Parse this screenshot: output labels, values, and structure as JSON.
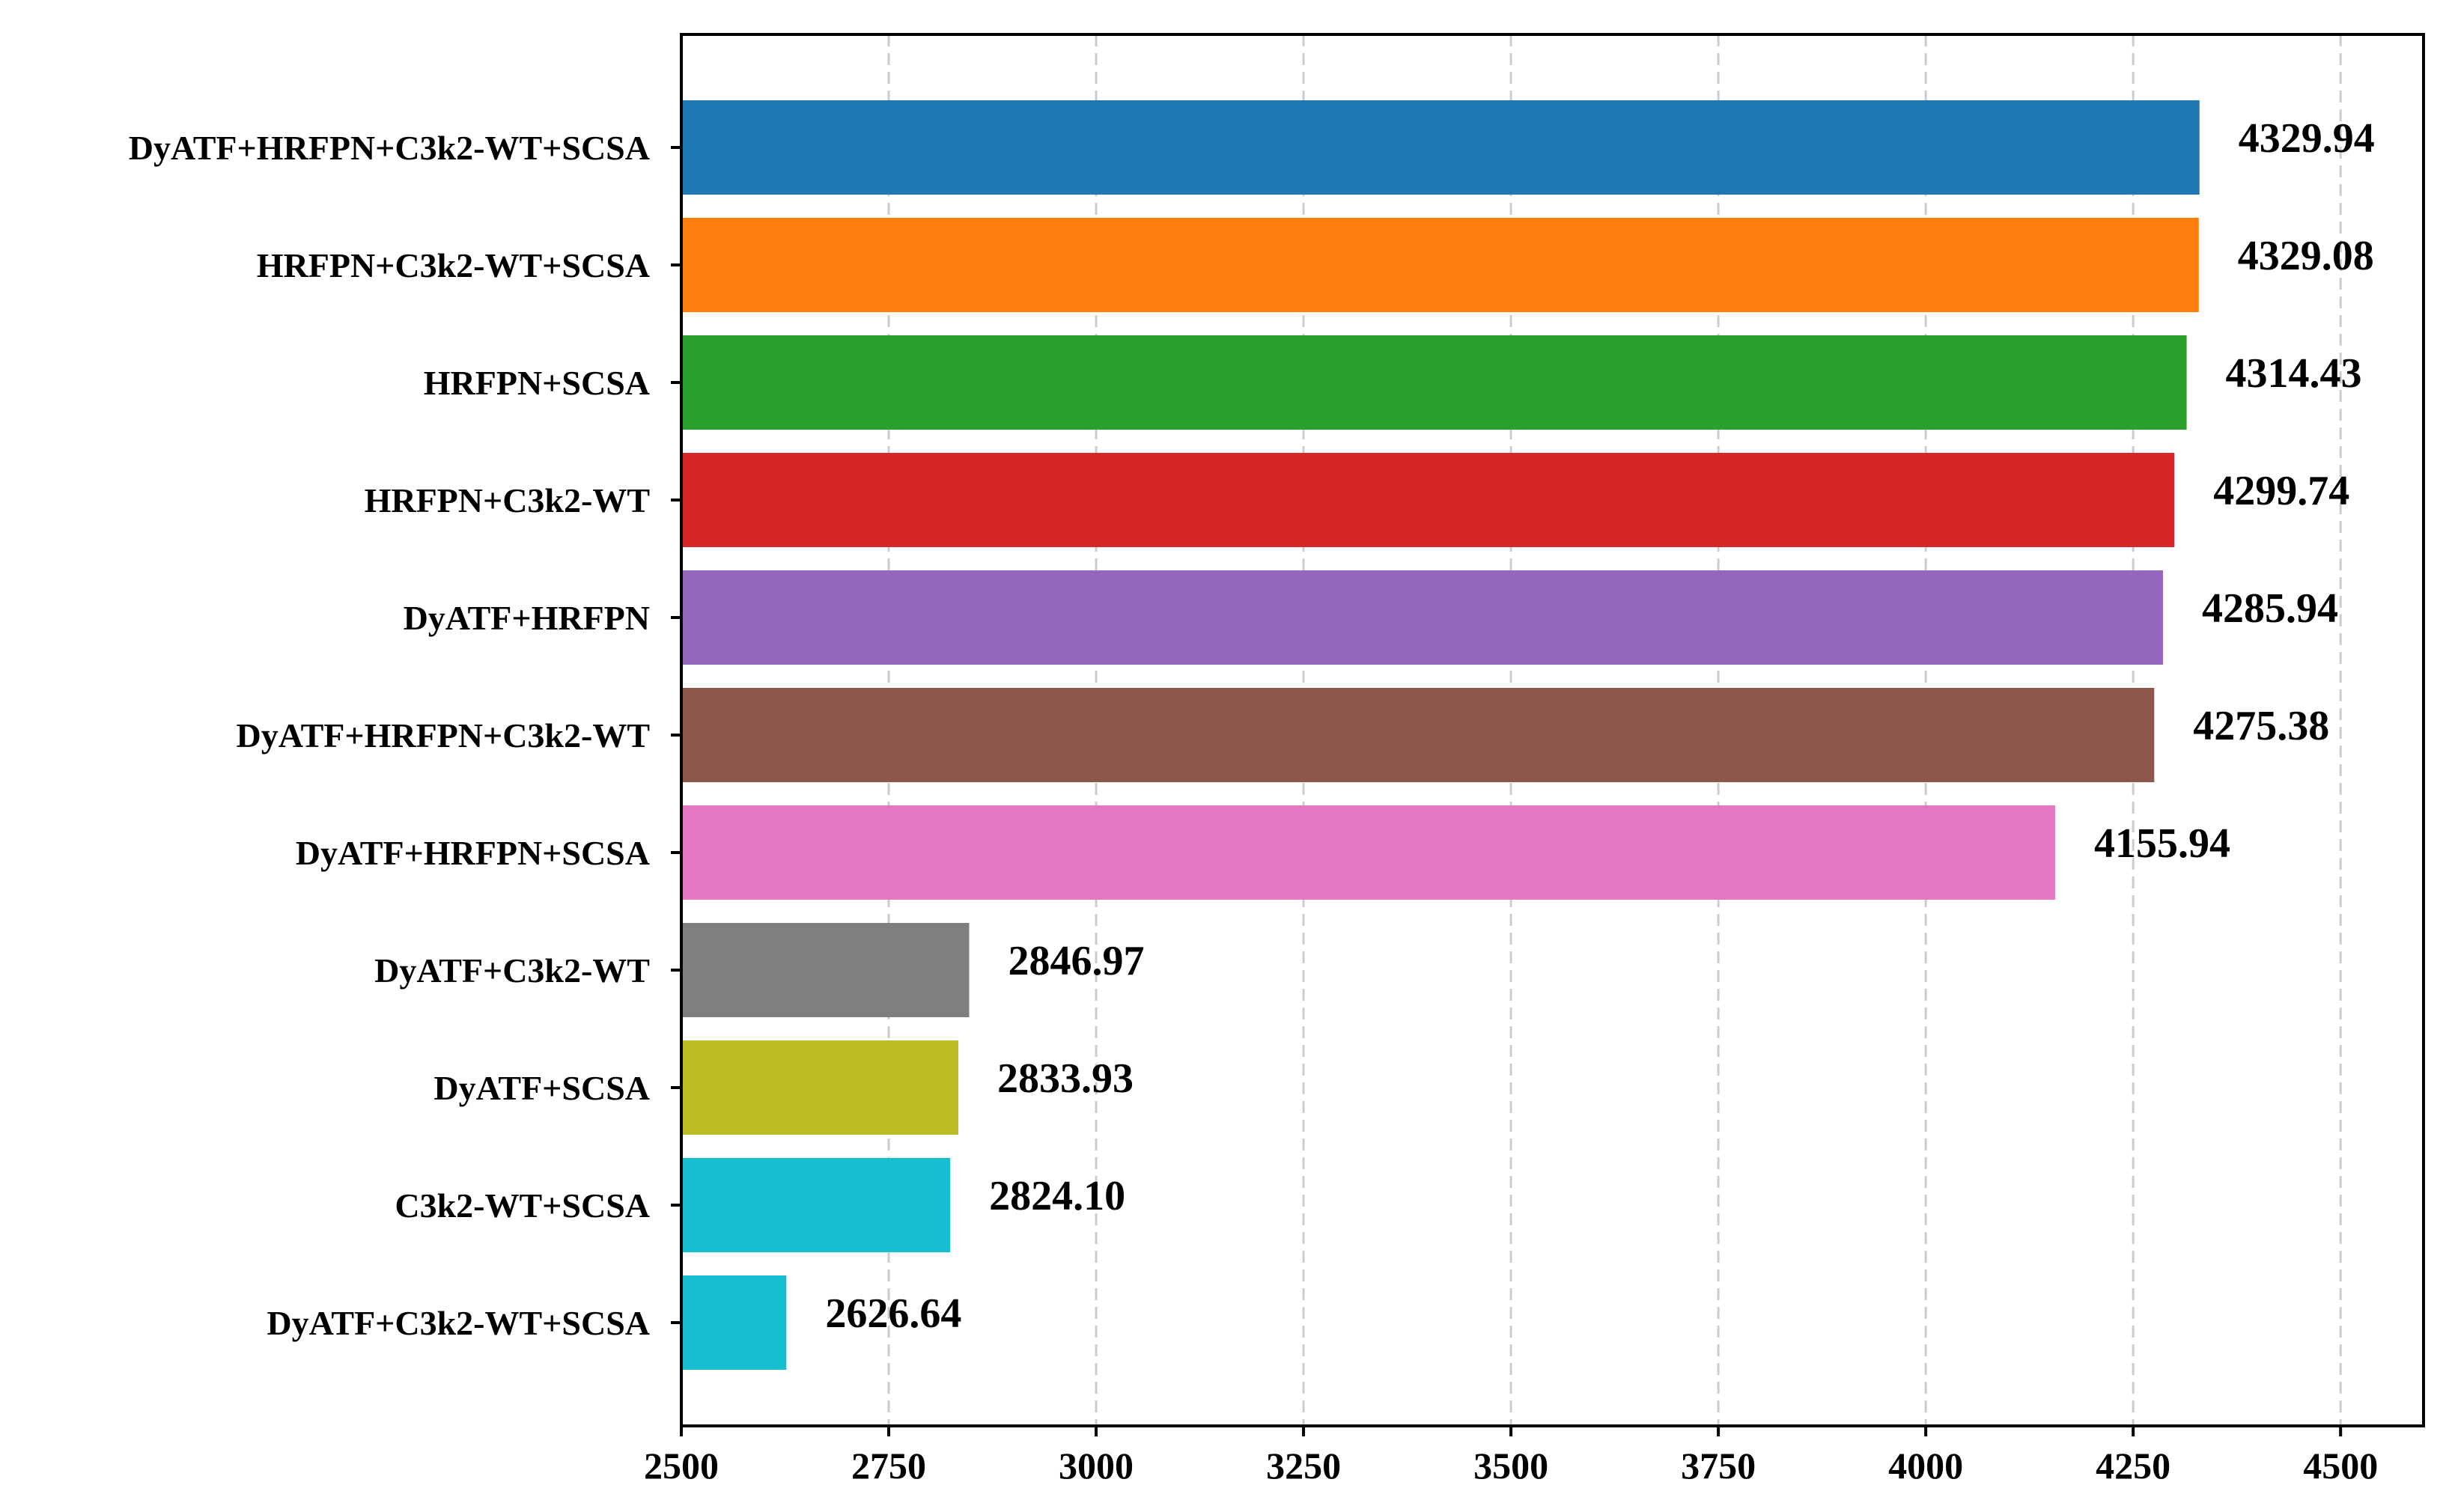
{
  "chart_data": {
    "type": "bar",
    "orientation": "horizontal",
    "title": "",
    "xlabel": "",
    "ylabel": "",
    "xlim": [
      2500,
      4600
    ],
    "xticks": [
      2500,
      2750,
      3000,
      3250,
      3500,
      3750,
      4000,
      4250,
      4500
    ],
    "grid": "vertical dashed",
    "categories": [
      "DyATF+HRFPN+C3k2-WT+SCSA",
      "HRFPN+C3k2-WT+SCSA",
      "HRFPN+SCSA",
      "HRFPN+C3k2-WT",
      "DyATF+HRFPN",
      "DyATF+HRFPN+C3k2-WT",
      "DyATF+HRFPN+SCSA",
      "DyATF+C3k2-WT",
      "DyATF+SCSA",
      "C3k2-WT+SCSA",
      "DyATF+C3k2-WT+SCSA"
    ],
    "values": [
      4329.94,
      4329.08,
      4314.43,
      4299.74,
      4285.94,
      4275.38,
      4155.94,
      2846.97,
      2833.93,
      2824.1,
      2626.64
    ],
    "value_labels": [
      "4329.94",
      "4329.08",
      "4314.43",
      "4299.74",
      "4285.94",
      "4275.38",
      "4155.94",
      "2846.97",
      "2833.93",
      "2824.10",
      "2626.64"
    ],
    "colors": [
      "#1f77b4",
      "#ff7f0e",
      "#2ca02c",
      "#d62728",
      "#9467bd",
      "#8c564b",
      "#e377c2",
      "#7f7f7f",
      "#bcbd22",
      "#17becf",
      "#17becf"
    ]
  }
}
